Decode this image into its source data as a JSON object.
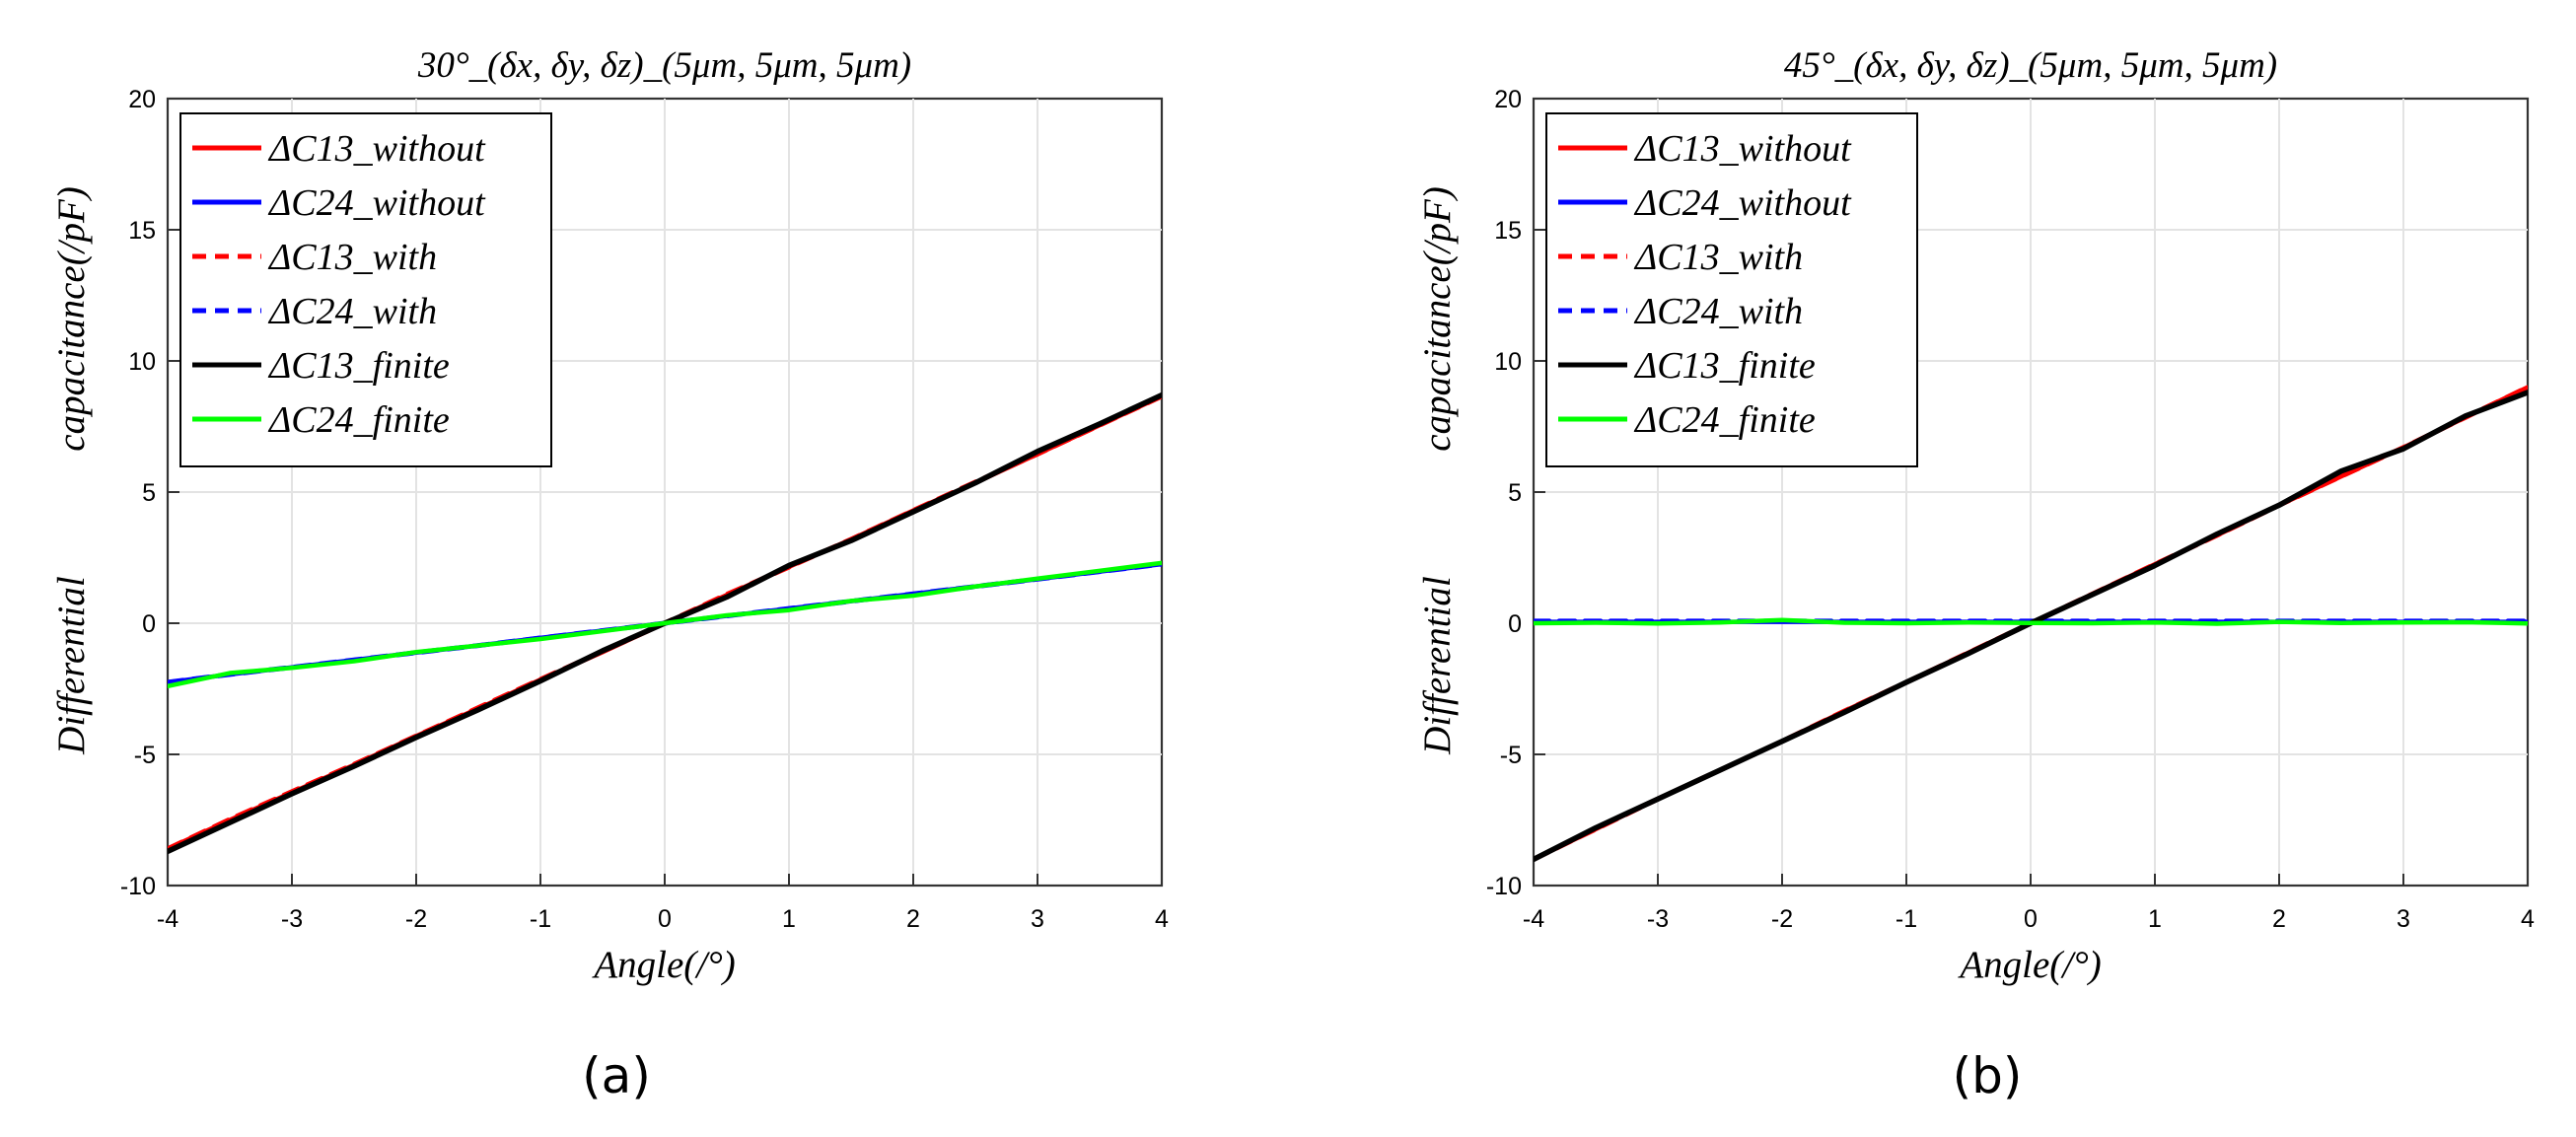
{
  "figure_labels": [
    "(a)",
    "(b)"
  ],
  "colors": {
    "red": "#ff0000",
    "blue": "#0000ff",
    "black": "#000000",
    "green": "#00ff00",
    "grid": "#e3e3e3",
    "axis": "#333333"
  },
  "chart_data": [
    {
      "type": "line",
      "panel_label": "(a)",
      "title": "30°_(δx, δy, δz)_(5μm, 5μm, 5μm)",
      "xlabel": "Angle(/°)",
      "ylabel_parts": [
        "Differential",
        "capacitance(/pF)"
      ],
      "xlim": [
        -4,
        4
      ],
      "ylim": [
        -10,
        20
      ],
      "xticks": [
        -4,
        -3,
        -2,
        -1,
        0,
        1,
        2,
        3,
        4
      ],
      "yticks": [
        -10,
        -5,
        0,
        5,
        10,
        15,
        20
      ],
      "grid": true,
      "legend_position": "top-left",
      "x": [
        -4,
        -3.5,
        -3,
        -2.5,
        -2,
        -1.5,
        -1,
        -0.5,
        0,
        0.5,
        1,
        1.5,
        2,
        2.5,
        3,
        3.5,
        4
      ],
      "series": [
        {
          "name": "ΔC13_without",
          "color": "red",
          "dash": "solid",
          "values": [
            -8.6,
            -7.5,
            -6.45,
            -5.4,
            -4.3,
            -3.25,
            -2.15,
            -1.1,
            0.0,
            1.08,
            2.15,
            3.2,
            4.3,
            5.35,
            6.45,
            7.55,
            8.65
          ]
        },
        {
          "name": "ΔC24_without",
          "color": "blue",
          "dash": "solid",
          "values": [
            -2.25,
            -1.95,
            -1.68,
            -1.4,
            -1.12,
            -0.85,
            -0.56,
            -0.28,
            0.0,
            0.28,
            0.56,
            0.84,
            1.12,
            1.4,
            1.68,
            1.97,
            2.25
          ]
        },
        {
          "name": "ΔC13_with",
          "color": "red",
          "dash": "dashed",
          "values": [
            -8.6,
            -7.48,
            -6.42,
            -5.38,
            -4.3,
            -3.22,
            -2.14,
            -1.08,
            0.0,
            1.1,
            2.14,
            3.2,
            4.3,
            5.38,
            6.45,
            7.55,
            8.65
          ]
        },
        {
          "name": "ΔC24_with",
          "color": "blue",
          "dash": "dashed",
          "values": [
            -2.25,
            -1.95,
            -1.68,
            -1.4,
            -1.12,
            -0.85,
            -0.56,
            -0.28,
            0.0,
            0.28,
            0.56,
            0.84,
            1.12,
            1.4,
            1.68,
            1.97,
            2.25
          ]
        },
        {
          "name": "ΔC13_finite",
          "color": "black",
          "dash": "solid",
          "values": [
            -8.7,
            -7.6,
            -6.5,
            -5.45,
            -4.35,
            -3.3,
            -2.2,
            -1.05,
            0.0,
            1.0,
            2.2,
            3.15,
            4.25,
            5.35,
            6.55,
            7.6,
            8.7
          ]
        },
        {
          "name": "ΔC24_finite",
          "color": "green",
          "dash": "solid",
          "values": [
            -2.4,
            -1.9,
            -1.7,
            -1.45,
            -1.1,
            -0.85,
            -0.6,
            -0.3,
            0.0,
            0.3,
            0.5,
            0.85,
            1.05,
            1.4,
            1.7,
            2.0,
            2.3
          ]
        }
      ]
    },
    {
      "type": "line",
      "panel_label": "(b)",
      "title": "45°_(δx, δy, δz)_(5μm, 5μm, 5μm)",
      "xlabel": "Angle(/°)",
      "ylabel_parts": [
        "Differential",
        "capacitance(/pF)"
      ],
      "xlim": [
        -4,
        4
      ],
      "ylim": [
        -10,
        20
      ],
      "xticks": [
        -4,
        -3,
        -2,
        -1,
        0,
        1,
        2,
        3,
        4
      ],
      "yticks": [
        -10,
        -5,
        0,
        5,
        10,
        15,
        20
      ],
      "grid": true,
      "legend_position": "top-left",
      "x": [
        -4,
        -3.5,
        -3,
        -2.5,
        -2,
        -1.5,
        -1,
        -0.5,
        0,
        0.5,
        1,
        1.5,
        2,
        2.5,
        3,
        3.5,
        4
      ],
      "series": [
        {
          "name": "ΔC13_without",
          "color": "red",
          "dash": "solid",
          "values": [
            -9.0,
            -7.85,
            -6.7,
            -5.6,
            -4.5,
            -3.35,
            -2.25,
            -1.12,
            0.0,
            1.12,
            2.25,
            3.35,
            4.5,
            5.6,
            6.7,
            7.85,
            9.0
          ]
        },
        {
          "name": "ΔC24_without",
          "color": "blue",
          "dash": "solid",
          "values": [
            0.05,
            0.05,
            0.05,
            0.05,
            0.05,
            0.05,
            0.05,
            0.05,
            0.05,
            0.05,
            0.05,
            0.05,
            0.05,
            0.05,
            0.05,
            0.05,
            0.05
          ]
        },
        {
          "name": "ΔC13_with",
          "color": "red",
          "dash": "dashed",
          "values": [
            -9.0,
            -7.85,
            -6.7,
            -5.6,
            -4.5,
            -3.35,
            -2.25,
            -1.12,
            0.0,
            1.12,
            2.25,
            3.35,
            4.5,
            5.6,
            6.7,
            7.85,
            9.0
          ]
        },
        {
          "name": "ΔC24_with",
          "color": "blue",
          "dash": "dashed",
          "values": [
            0.08,
            0.08,
            0.08,
            0.08,
            0.08,
            0.08,
            0.08,
            0.08,
            0.08,
            0.08,
            0.08,
            0.08,
            0.08,
            0.08,
            0.08,
            0.08,
            0.08
          ]
        },
        {
          "name": "ΔC13_finite",
          "color": "black",
          "dash": "solid",
          "values": [
            -9.0,
            -7.8,
            -6.7,
            -5.6,
            -4.5,
            -3.4,
            -2.25,
            -1.15,
            0.0,
            1.1,
            2.2,
            3.4,
            4.5,
            5.8,
            6.65,
            7.9,
            8.8
          ]
        },
        {
          "name": "ΔC24_finite",
          "color": "green",
          "dash": "solid",
          "values": [
            0.0,
            0.02,
            -0.01,
            0.03,
            0.12,
            0.02,
            0.0,
            0.03,
            0.01,
            0.0,
            0.03,
            -0.02,
            0.05,
            0.01,
            0.03,
            0.04,
            -0.01
          ]
        }
      ]
    }
  ]
}
